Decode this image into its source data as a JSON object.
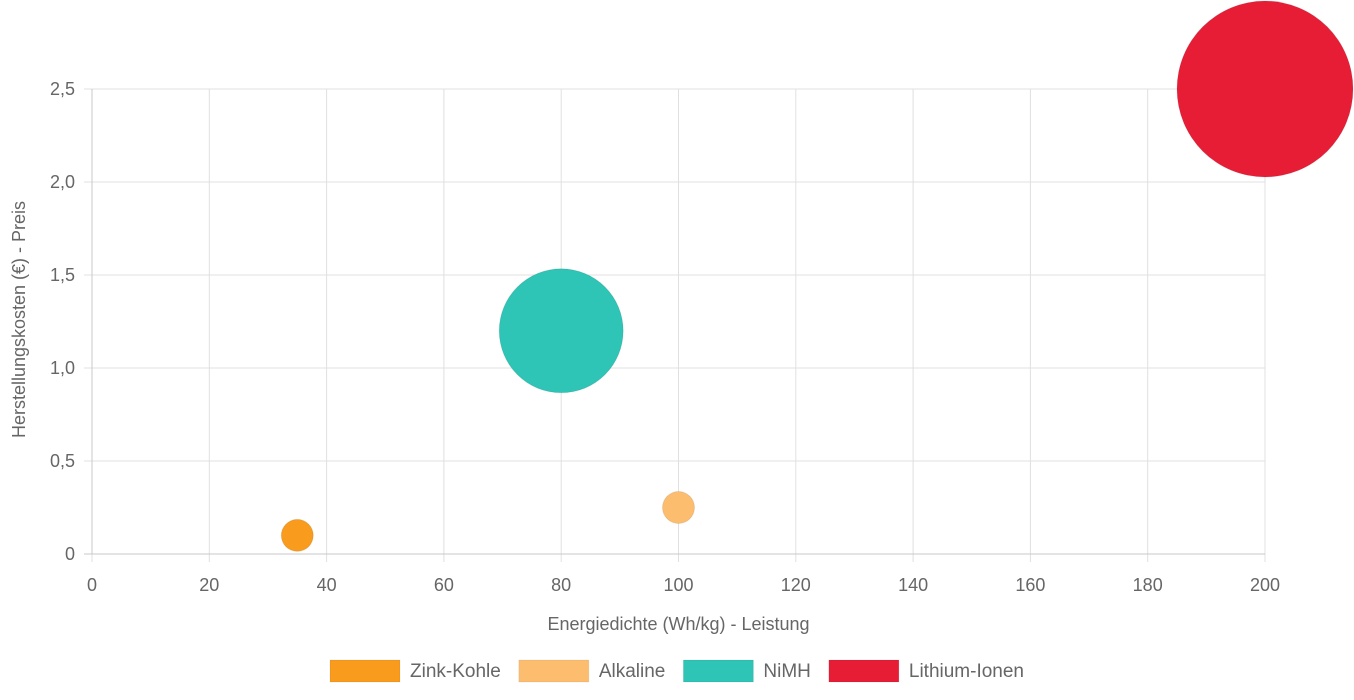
{
  "chart_data": {
    "type": "scatter",
    "subtype": "bubble",
    "xlabel": "Energiedichte (Wh/kg) - Leistung",
    "ylabel": "Herstellungskosten (€) - Preis",
    "xlim": [
      0,
      200
    ],
    "ylim": [
      0,
      2.5
    ],
    "x_ticks": [
      "0",
      "20",
      "40",
      "60",
      "80",
      "100",
      "120",
      "140",
      "160",
      "180",
      "200"
    ],
    "y_ticks": [
      "0",
      "0,5",
      "1,0",
      "1,5",
      "2,0",
      "2,5"
    ],
    "grid": true,
    "legend_position": "bottom",
    "series": [
      {
        "name": "Zink-Kohle",
        "color": "#f99b1c",
        "points": [
          {
            "x": 35,
            "y": 0.1,
            "r": 16
          }
        ]
      },
      {
        "name": "Alkaline",
        "color": "#fdbd6e",
        "points": [
          {
            "x": 100,
            "y": 0.25,
            "r": 16
          }
        ]
      },
      {
        "name": "NiMH",
        "color": "#2ec4b6",
        "points": [
          {
            "x": 80,
            "y": 1.2,
            "r": 62
          }
        ]
      },
      {
        "name": "Lithium-Ionen",
        "color": "#e71d36",
        "points": [
          {
            "x": 200,
            "y": 2.5,
            "r": 88
          }
        ]
      }
    ]
  }
}
